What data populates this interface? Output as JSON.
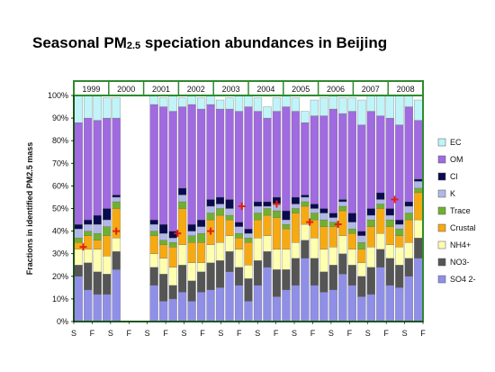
{
  "title": {
    "main": "Seasonal PM",
    "sub": "2.5",
    "rest": " speciation abundances in Beijing"
  },
  "chart_data": {
    "type": "bar",
    "stacked": true,
    "ylabel": "Fractions in identified PM2.5 mass",
    "ylim": [
      0,
      100
    ],
    "yticks": [
      "0%",
      "10%",
      "20%",
      "30%",
      "40%",
      "50%",
      "60%",
      "70%",
      "80%",
      "90%",
      "100%"
    ],
    "years": [
      "1999",
      "2000",
      "2001",
      "2002",
      "2003",
      "2004",
      "2005",
      "2006",
      "2007",
      "2008"
    ],
    "season_ticks": [
      "S",
      "F",
      "S",
      "F",
      "S",
      "F",
      "S",
      "F",
      "S",
      "F",
      "S",
      "F",
      "S",
      "F",
      "S",
      "F",
      "S",
      "F",
      "S",
      "F"
    ],
    "components": [
      "SO4 2-",
      "NO3-",
      "NH4+",
      "Crustal",
      "Trace",
      "K",
      "Cl",
      "OM",
      "EC"
    ],
    "legend": [
      "EC",
      "OM",
      "Cl",
      "K",
      "Trace",
      "Crustal",
      "NH4+",
      "NO3-",
      "SO4 2-"
    ],
    "colors": {
      "SO4 2-": "#8f8fe8",
      "NO3-": "#555555",
      "NH4+": "#ffffb0",
      "Crustal": "#f5aa14",
      "Trace": "#70b030",
      "K": "#b0b8e8",
      "Cl": "#0a0a50",
      "OM": "#a06ae0",
      "EC": "#c0f4f8",
      "frame": "#2e8b2e",
      "marker": "#e02010"
    },
    "bars": [
      [
        20,
        5,
        7,
        3,
        2,
        4,
        2,
        45,
        12
      ],
      [
        14,
        12,
        6,
        6,
        2,
        3,
        2,
        45,
        10
      ],
      [
        12,
        10,
        10,
        4,
        3,
        4,
        4,
        42,
        11
      ],
      [
        12,
        9,
        8,
        9,
        4,
        3,
        5,
        40,
        9
      ],
      [
        23,
        8,
        6,
        13,
        3,
        2,
        1,
        34,
        9
      ],
      null,
      null,
      null,
      [
        16,
        8,
        6,
        8,
        2,
        3,
        2,
        51,
        4
      ],
      [
        9,
        12,
        7,
        6,
        2,
        3,
        4,
        52,
        4
      ],
      [
        10,
        6,
        8,
        9,
        2,
        2,
        3,
        53,
        7
      ],
      [
        13,
        12,
        9,
        16,
        3,
        3,
        3,
        36,
        4
      ],
      [
        9,
        9,
        8,
        9,
        3,
        2,
        3,
        53,
        4
      ],
      [
        13,
        9,
        4,
        9,
        4,
        3,
        3,
        49,
        5
      ],
      [
        14,
        12,
        8,
        11,
        3,
        3,
        3,
        42,
        4
      ],
      [
        15,
        12,
        8,
        12,
        3,
        2,
        3,
        39,
        4
      ],
      [
        22,
        9,
        7,
        7,
        2,
        3,
        4,
        40,
        5
      ],
      [
        16,
        8,
        8,
        5,
        2,
        3,
        2,
        49,
        7
      ],
      [
        9,
        10,
        6,
        10,
        2,
        2,
        2,
        54,
        5
      ],
      [
        16,
        11,
        10,
        8,
        3,
        3,
        2,
        40,
        6
      ],
      [
        24,
        7,
        7,
        9,
        3,
        1,
        2,
        37,
        5
      ],
      [
        11,
        12,
        9,
        14,
        3,
        3,
        3,
        38,
        6
      ],
      [
        14,
        9,
        9,
        9,
        2,
        2,
        4,
        46,
        5
      ],
      [
        16,
        12,
        7,
        13,
        2,
        2,
        3,
        38,
        6
      ],
      [
        28,
        8,
        7,
        8,
        2,
        2,
        1,
        32,
        5
      ],
      [
        16,
        12,
        9,
        8,
        3,
        2,
        2,
        39,
        7
      ],
      [
        13,
        9,
        10,
        10,
        3,
        3,
        2,
        41,
        8
      ],
      [
        14,
        11,
        8,
        9,
        2,
        2,
        2,
        46,
        6
      ],
      [
        21,
        9,
        8,
        11,
        2,
        2,
        1,
        38,
        7
      ],
      [
        16,
        9,
        7,
        7,
        2,
        3,
        4,
        45,
        6
      ],
      [
        11,
        9,
        6,
        6,
        3,
        3,
        2,
        47,
        11
      ],
      [
        12,
        12,
        9,
        9,
        3,
        2,
        3,
        43,
        7
      ],
      [
        24,
        8,
        7,
        11,
        2,
        2,
        3,
        34,
        9
      ],
      [
        16,
        12,
        6,
        8,
        3,
        2,
        3,
        40,
        10
      ],
      [
        15,
        10,
        8,
        5,
        3,
        2,
        2,
        42,
        13
      ],
      [
        20,
        8,
        7,
        10,
        3,
        3,
        2,
        42,
        5
      ],
      [
        28,
        9,
        8,
        12,
        2,
        3,
        1,
        26,
        9
      ]
    ],
    "markers": [
      {
        "bar": 0.5,
        "value": 33
      },
      {
        "bar": 4,
        "value": 40
      },
      {
        "bar": 10.5,
        "value": 39
      },
      {
        "bar": 14,
        "value": 40
      },
      {
        "bar": 17.3,
        "value": 51
      },
      {
        "bar": 21,
        "value": 52
      },
      {
        "bar": 24.5,
        "value": 44
      },
      {
        "bar": 27.5,
        "value": 43
      },
      {
        "bar": 33.5,
        "value": 54
      }
    ]
  }
}
